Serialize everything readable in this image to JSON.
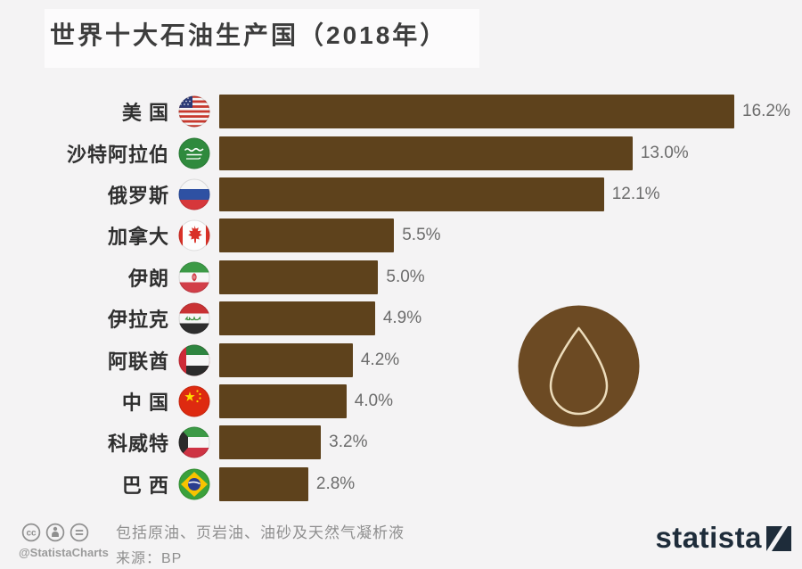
{
  "title": "世界十大石油生产国（2018年）",
  "chart_data": {
    "type": "bar",
    "orientation": "horizontal",
    "title": "世界十大石油生产国（2018年）",
    "unit": "%",
    "xlim": [
      0,
      16.2
    ],
    "grid": false,
    "legend": false,
    "bar_color": "#5e421c",
    "categories": [
      "美 国",
      "沙特阿拉伯",
      "俄罗斯",
      "加拿大",
      "伊朗",
      "伊拉克",
      "阿联酋",
      "中 国",
      "科威特",
      "巴 西"
    ],
    "values": [
      16.2,
      13.0,
      12.1,
      5.5,
      5.0,
      4.9,
      4.2,
      4.0,
      3.2,
      2.8
    ],
    "value_labels": [
      "16.2%",
      "13.0%",
      "12.1%",
      "5.5%",
      "5.0%",
      "4.9%",
      "4.2%",
      "4.0%",
      "3.2%",
      "2.8%"
    ],
    "flags": [
      "flag-usa",
      "flag-saudi-arabia",
      "flag-russia",
      "flag-canada",
      "flag-iran",
      "flag-iraq",
      "flag-uae",
      "flag-china",
      "flag-kuwait",
      "flag-brazil"
    ]
  },
  "decor": {
    "icon": "oil-drop-icon",
    "circle_color": "#6c4a23",
    "drop_outline_color": "#ecdcbb"
  },
  "footer": {
    "note": "包括原油、页岩油、油砂及天然气凝析液",
    "source_label": "来源：BP",
    "credit": "@StatistaCharts",
    "brand": "statista",
    "license_icons": [
      "cc-icon",
      "attribution-icon",
      "equals-icon"
    ]
  }
}
